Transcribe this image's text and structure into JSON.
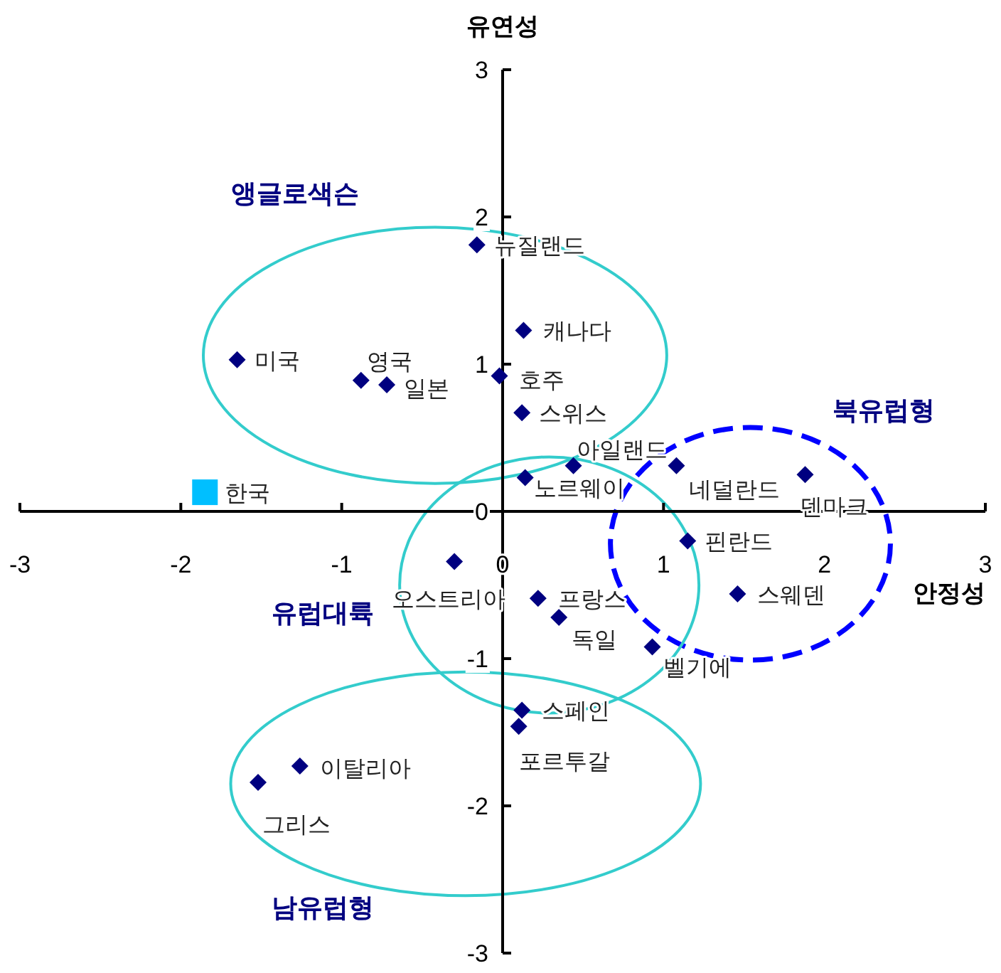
{
  "chart_data": {
    "type": "scatter",
    "xlabel": "안정성",
    "ylabel": "유연성",
    "xlim": [
      -3,
      3
    ],
    "ylim": [
      -3,
      3
    ],
    "xticks": [
      -3,
      -2,
      -1,
      0,
      1,
      2,
      3
    ],
    "yticks": [
      -3,
      -2,
      -1,
      0,
      1,
      2,
      3
    ],
    "grid": false,
    "series": [
      {
        "color": "#000080",
        "marker": "diamond",
        "x": [
          -0.16,
          0.13,
          -1.65,
          -0.88,
          -0.72,
          -0.02,
          0.12,
          0.44,
          0.14,
          1.08,
          1.88,
          1.15,
          1.46,
          -0.3,
          0.22,
          0.35,
          0.93,
          0.12,
          0.1,
          -1.26,
          -1.52
        ],
        "values": [
          1.81,
          1.23,
          1.03,
          0.89,
          0.86,
          0.92,
          0.67,
          0.31,
          0.23,
          0.31,
          0.25,
          -0.2,
          -0.56,
          -0.34,
          -0.59,
          -0.72,
          -0.92,
          -1.35,
          -1.46,
          -1.73,
          -1.84
        ]
      },
      {
        "color": "#00bfff",
        "marker": "square",
        "x": [
          -1.85
        ],
        "values": [
          0.13
        ]
      }
    ],
    "annotations": [
      {
        "text": "뉴질랜드",
        "x": -0.16,
        "y": 1.81
      },
      {
        "text": "캐나다",
        "x": 0.13,
        "y": 1.23
      },
      {
        "text": "미국",
        "x": -1.65,
        "y": 1.03
      },
      {
        "text": "영국",
        "x": -0.88,
        "y": 0.89
      },
      {
        "text": "일본",
        "x": -0.72,
        "y": 0.86
      },
      {
        "text": "호주",
        "x": -0.02,
        "y": 0.92
      },
      {
        "text": "스위스",
        "x": 0.12,
        "y": 0.67
      },
      {
        "text": "아일랜드",
        "x": 0.44,
        "y": 0.31
      },
      {
        "text": "노르웨이",
        "x": 0.14,
        "y": 0.23
      },
      {
        "text": "네덜란드",
        "x": 1.08,
        "y": 0.31
      },
      {
        "text": "덴마크",
        "x": 1.88,
        "y": 0.25
      },
      {
        "text": "핀란드",
        "x": 1.15,
        "y": -0.2
      },
      {
        "text": "스웨덴",
        "x": 1.46,
        "y": -0.56
      },
      {
        "text": "오스트리아",
        "x": -0.3,
        "y": -0.34
      },
      {
        "text": "프랑스",
        "x": 0.22,
        "y": -0.59
      },
      {
        "text": "독일",
        "x": 0.35,
        "y": -0.72
      },
      {
        "text": "벨기에",
        "x": 0.93,
        "y": -0.92
      },
      {
        "text": "스페인",
        "x": 0.12,
        "y": -1.35
      },
      {
        "text": "포르투갈",
        "x": 0.1,
        "y": -1.46
      },
      {
        "text": "이탈리아",
        "x": -1.26,
        "y": -1.73
      },
      {
        "text": "그리스",
        "x": -1.52,
        "y": -1.84
      },
      {
        "text": "한국",
        "x": -1.85,
        "y": 0.13
      },
      "앵글로색슨",
      "북유럽형",
      "유럽대륙",
      "남유럽형"
    ]
  }
}
